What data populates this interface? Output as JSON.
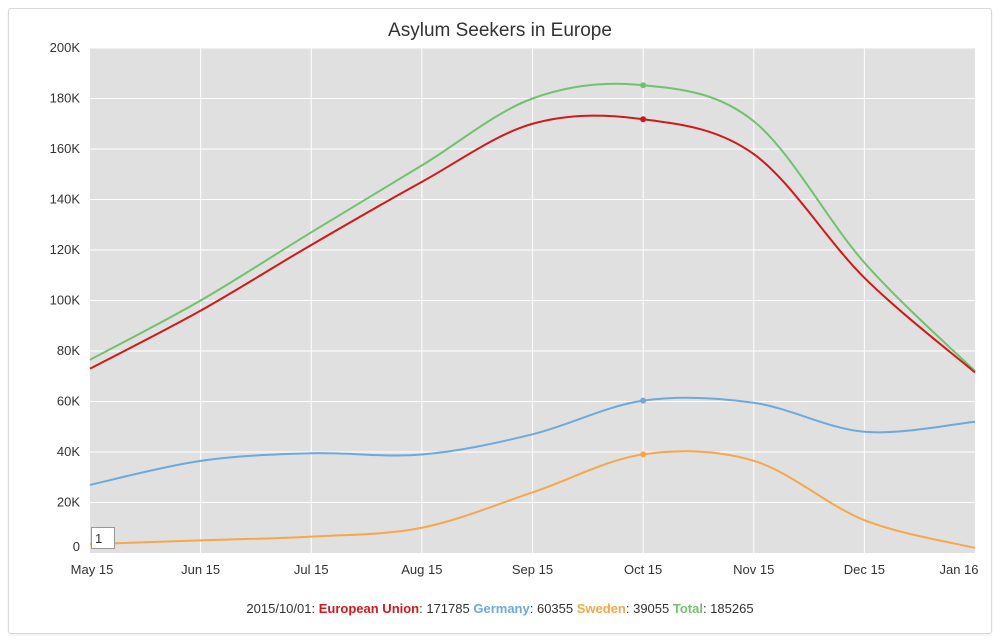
{
  "chart_data": {
    "type": "line",
    "title": "Asylum Seekers in Europe",
    "x": [
      "2015-05-01",
      "2015-06-01",
      "2015-07-01",
      "2015-08-01",
      "2015-09-01",
      "2015-10-01",
      "2015-11-01",
      "2015-12-01",
      "2016-01-01"
    ],
    "x_tick_labels": [
      "May 15",
      "Jun 15",
      "Jul 15",
      "Aug 15",
      "Sep 15",
      "Oct 15",
      "Nov 15",
      "Dec 15",
      "Jan 16"
    ],
    "y_tick_labels": [
      "0",
      "20K",
      "40K",
      "60K",
      "80K",
      "100K",
      "120K",
      "140K",
      "160K",
      "180K",
      "200K"
    ],
    "ylim": [
      0,
      200000
    ],
    "grid": true,
    "series": [
      {
        "name": "Total",
        "color": "#72c16e",
        "values": [
          76500,
          100000,
          127000,
          153500,
          180000,
          185265,
          171000,
          115000,
          72000
        ]
      },
      {
        "name": "European Union",
        "color": "#d0191b",
        "values": [
          73000,
          96000,
          122000,
          147000,
          170000,
          171785,
          158000,
          109000,
          71500
        ]
      },
      {
        "name": "Germany",
        "color": "#6ea9dc",
        "values": [
          27000,
          36500,
          39500,
          39000,
          47000,
          60355,
          59500,
          48000,
          52000
        ]
      },
      {
        "name": "Sweden",
        "color": "#f5a84b",
        "values": [
          3500,
          5000,
          6500,
          10000,
          24000,
          39055,
          36500,
          13000,
          2000
        ]
      }
    ],
    "highlight_index": 5
  },
  "legend": {
    "date": "2015/10/01",
    "items": [
      {
        "name": "European Union",
        "value": "171785",
        "color": "#d0191b"
      },
      {
        "name": "Germany",
        "value": "60355",
        "color": "#6ea9dc"
      },
      {
        "name": "Sweden",
        "value": "39055",
        "color": "#f5a84b"
      },
      {
        "name": "Total",
        "value": "185265",
        "color": "#72c16e"
      }
    ]
  },
  "range_selector": {
    "value": "1"
  }
}
